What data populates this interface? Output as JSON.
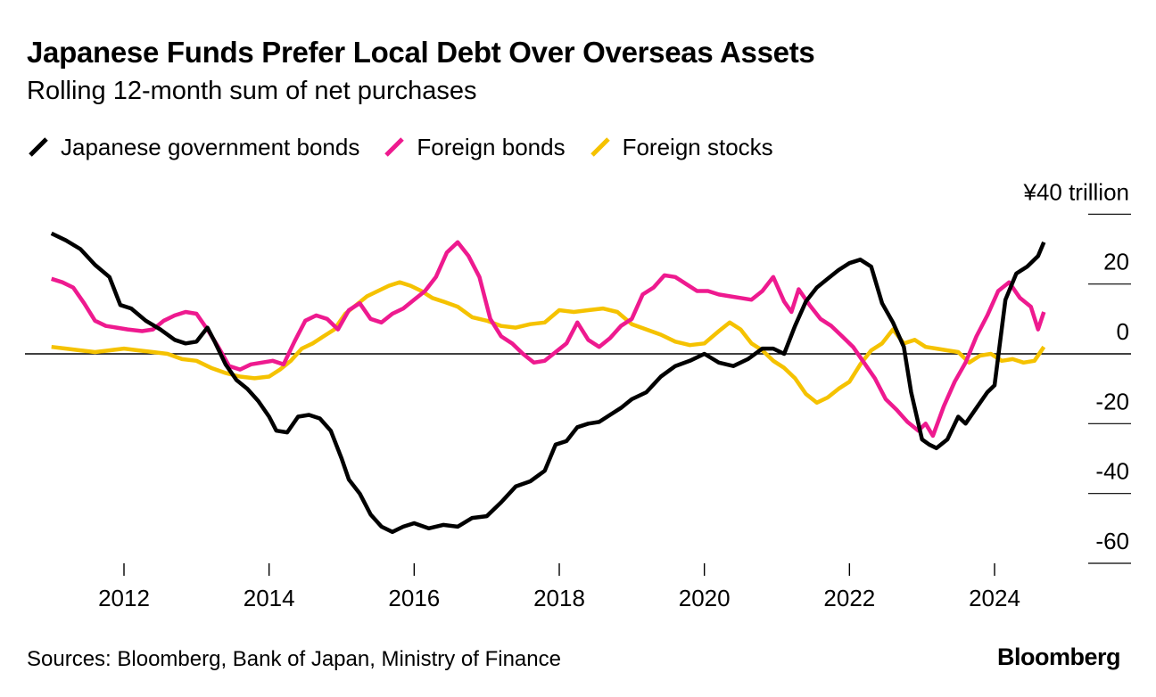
{
  "header": {
    "title": "Japanese Funds Prefer Local Debt Over Overseas Assets",
    "subtitle": "Rolling 12-month sum of net purchases"
  },
  "footer": {
    "source": "Sources: Bloomberg, Bank of Japan, Ministry of Finance",
    "brand": "Bloomberg"
  },
  "colors": {
    "jgb": "#000000",
    "foreign_bonds": "#ee1a8f",
    "foreign_stocks": "#f5c200",
    "zero_line": "#000000",
    "gridline": "#000000"
  },
  "chart_data": {
    "type": "line",
    "title": "Japanese Funds Prefer Local Debt Over Overseas Assets",
    "subtitle": "Rolling 12-month sum of net purchases",
    "xlabel": "",
    "ylabel": "¥ trillion",
    "unit_label": "¥40 trillion",
    "xlim": [
      2011.0,
      2025.3
    ],
    "ylim": [
      -60,
      40
    ],
    "x_ticks": [
      2012,
      2014,
      2016,
      2018,
      2020,
      2022,
      2024
    ],
    "x_tick_labels": [
      "2012",
      "2014",
      "2016",
      "2018",
      "2020",
      "2022",
      "2024"
    ],
    "y_ticks": [
      20,
      0,
      -20,
      -40,
      -60
    ],
    "y_tick_labels": [
      "20",
      "0",
      "-20",
      "-40",
      "-60"
    ],
    "grid": false,
    "legend_position": "top-left",
    "series": [
      {
        "name": "Japanese government bonds",
        "color_key": "jgb",
        "x": [
          2011.0,
          2011.2,
          2011.4,
          2011.6,
          2011.8,
          2011.95,
          2012.1,
          2012.3,
          2012.5,
          2012.7,
          2012.85,
          2013.0,
          2013.15,
          2013.25,
          2013.4,
          2013.55,
          2013.7,
          2013.85,
          2014.0,
          2014.1,
          2014.25,
          2014.4,
          2014.55,
          2014.7,
          2014.85,
          2015.0,
          2015.1,
          2015.25,
          2015.4,
          2015.55,
          2015.7,
          2015.85,
          2016.0,
          2016.2,
          2016.4,
          2016.6,
          2016.8,
          2017.0,
          2017.2,
          2017.4,
          2017.6,
          2017.8,
          2017.95,
          2018.1,
          2018.25,
          2018.4,
          2018.55,
          2018.7,
          2018.85,
          2019.0,
          2019.2,
          2019.4,
          2019.6,
          2019.8,
          2020.0,
          2020.2,
          2020.4,
          2020.6,
          2020.8,
          2020.95,
          2021.1,
          2021.25,
          2021.4,
          2021.55,
          2021.7,
          2021.85,
          2022.0,
          2022.15,
          2022.3,
          2022.45,
          2022.6,
          2022.75,
          2022.85,
          2023.0,
          2023.1,
          2023.2,
          2023.35,
          2023.5,
          2023.6,
          2023.75,
          2023.9,
          2024.0,
          2024.15,
          2024.3,
          2024.45,
          2024.6,
          2024.68
        ],
        "values": [
          34.5,
          32.5,
          30.0,
          25.5,
          22.0,
          14.0,
          13.0,
          9.5,
          7.0,
          4.0,
          3.0,
          3.5,
          7.5,
          3.5,
          -3.0,
          -7.5,
          -10.0,
          -13.5,
          -18.0,
          -22.0,
          -22.5,
          -18.0,
          -17.5,
          -18.5,
          -22.0,
          -30.0,
          -36.0,
          -40.0,
          -46.0,
          -49.5,
          -51.0,
          -49.5,
          -48.5,
          -50.0,
          -49.0,
          -49.5,
          -47.0,
          -46.5,
          -42.5,
          -38.0,
          -36.5,
          -33.5,
          -26.0,
          -25.0,
          -21.0,
          -20.0,
          -19.5,
          -17.5,
          -15.5,
          -13.0,
          -11.0,
          -6.5,
          -3.5,
          -2.0,
          0.0,
          -2.5,
          -3.5,
          -1.5,
          1.5,
          1.5,
          0.0,
          8.0,
          15.0,
          19.0,
          21.5,
          24.0,
          26.0,
          27.0,
          25.0,
          14.5,
          9.0,
          2.0,
          -11.0,
          -24.5,
          -26.0,
          -27.0,
          -24.5,
          -18.0,
          -20.0,
          -15.5,
          -11.0,
          -9.0,
          15.5,
          23.0,
          25.0,
          28.0,
          32.0
        ]
      },
      {
        "name": "Foreign bonds",
        "color_key": "foreign_bonds",
        "x": [
          2011.0,
          2011.15,
          2011.3,
          2011.45,
          2011.6,
          2011.75,
          2011.9,
          2012.05,
          2012.25,
          2012.4,
          2012.55,
          2012.7,
          2012.85,
          2013.0,
          2013.15,
          2013.3,
          2013.45,
          2013.6,
          2013.75,
          2013.9,
          2014.05,
          2014.2,
          2014.35,
          2014.5,
          2014.65,
          2014.8,
          2014.95,
          2015.1,
          2015.25,
          2015.4,
          2015.55,
          2015.7,
          2015.85,
          2016.0,
          2016.15,
          2016.3,
          2016.45,
          2016.6,
          2016.75,
          2016.9,
          2017.05,
          2017.2,
          2017.35,
          2017.5,
          2017.65,
          2017.8,
          2017.95,
          2018.1,
          2018.25,
          2018.4,
          2018.55,
          2018.7,
          2018.85,
          2019.0,
          2019.15,
          2019.3,
          2019.45,
          2019.6,
          2019.75,
          2019.9,
          2020.05,
          2020.2,
          2020.35,
          2020.5,
          2020.65,
          2020.8,
          2020.95,
          2021.1,
          2021.2,
          2021.3,
          2021.45,
          2021.6,
          2021.75,
          2021.9,
          2022.05,
          2022.2,
          2022.35,
          2022.5,
          2022.65,
          2022.8,
          2022.95,
          2023.05,
          2023.15,
          2023.3,
          2023.45,
          2023.6,
          2023.75,
          2023.9,
          2024.05,
          2024.2,
          2024.35,
          2024.5,
          2024.6,
          2024.68
        ],
        "values": [
          21.5,
          20.5,
          19.0,
          14.5,
          9.5,
          8.0,
          7.5,
          7.0,
          6.5,
          7.0,
          9.5,
          11.0,
          12.0,
          11.5,
          7.0,
          2.0,
          -3.5,
          -4.5,
          -3.0,
          -2.5,
          -2.0,
          -3.0,
          3.5,
          9.5,
          11.0,
          10.0,
          7.0,
          12.5,
          14.5,
          10.0,
          9.0,
          11.5,
          13.0,
          15.5,
          18.0,
          22.0,
          29.0,
          32.0,
          28.0,
          22.0,
          10.0,
          5.0,
          3.0,
          0.0,
          -2.5,
          -2.0,
          0.5,
          3.0,
          9.0,
          4.0,
          2.0,
          4.5,
          8.0,
          10.0,
          17.0,
          19.0,
          22.5,
          22.0,
          20.0,
          18.0,
          18.0,
          17.0,
          16.5,
          16.0,
          15.5,
          18.0,
          22.0,
          15.0,
          12.0,
          18.5,
          14.0,
          10.0,
          8.0,
          5.0,
          2.0,
          -2.5,
          -7.0,
          -13.0,
          -16.0,
          -19.5,
          -22.0,
          -20.0,
          -23.5,
          -15.0,
          -8.0,
          -2.5,
          5.0,
          11.0,
          18.0,
          20.5,
          16.0,
          13.5,
          7.0,
          12.0
        ]
      },
      {
        "name": "Foreign stocks",
        "color_key": "foreign_stocks",
        "x": [
          2011.0,
          2011.2,
          2011.4,
          2011.6,
          2011.8,
          2012.0,
          2012.2,
          2012.4,
          2012.6,
          2012.8,
          2013.0,
          2013.2,
          2013.4,
          2013.6,
          2013.8,
          2014.0,
          2014.15,
          2014.3,
          2014.45,
          2014.6,
          2014.75,
          2014.9,
          2015.05,
          2015.2,
          2015.35,
          2015.5,
          2015.65,
          2015.8,
          2015.95,
          2016.1,
          2016.25,
          2016.4,
          2016.6,
          2016.8,
          2017.0,
          2017.2,
          2017.4,
          2017.6,
          2017.8,
          2018.0,
          2018.2,
          2018.4,
          2018.6,
          2018.8,
          2019.0,
          2019.2,
          2019.4,
          2019.6,
          2019.8,
          2020.0,
          2020.2,
          2020.35,
          2020.5,
          2020.65,
          2020.8,
          2020.95,
          2021.1,
          2021.25,
          2021.4,
          2021.55,
          2021.7,
          2021.85,
          2022.0,
          2022.15,
          2022.3,
          2022.45,
          2022.6,
          2022.75,
          2022.9,
          2023.05,
          2023.2,
          2023.35,
          2023.5,
          2023.65,
          2023.8,
          2023.95,
          2024.1,
          2024.25,
          2024.4,
          2024.55,
          2024.68
        ],
        "values": [
          2.0,
          1.5,
          1.0,
          0.5,
          1.0,
          1.5,
          1.0,
          0.5,
          0.0,
          -1.5,
          -2.0,
          -4.0,
          -5.5,
          -6.5,
          -7.0,
          -6.5,
          -4.5,
          -2.0,
          1.5,
          3.0,
          5.0,
          7.0,
          11.5,
          14.0,
          16.5,
          18.0,
          19.5,
          20.5,
          19.5,
          18.0,
          16.0,
          15.0,
          13.5,
          10.5,
          9.5,
          8.0,
          7.5,
          8.5,
          9.0,
          12.5,
          12.0,
          12.5,
          13.0,
          12.0,
          8.5,
          7.0,
          5.5,
          3.5,
          2.5,
          3.0,
          6.5,
          9.0,
          7.0,
          3.0,
          1.0,
          -2.0,
          -4.0,
          -7.0,
          -11.5,
          -14.0,
          -12.5,
          -10.0,
          -8.0,
          -3.0,
          1.0,
          3.0,
          7.0,
          3.0,
          4.0,
          2.0,
          1.5,
          1.0,
          0.5,
          -2.5,
          -0.5,
          0.0,
          -2.0,
          -1.5,
          -2.5,
          -2.0,
          2.0
        ]
      }
    ]
  }
}
